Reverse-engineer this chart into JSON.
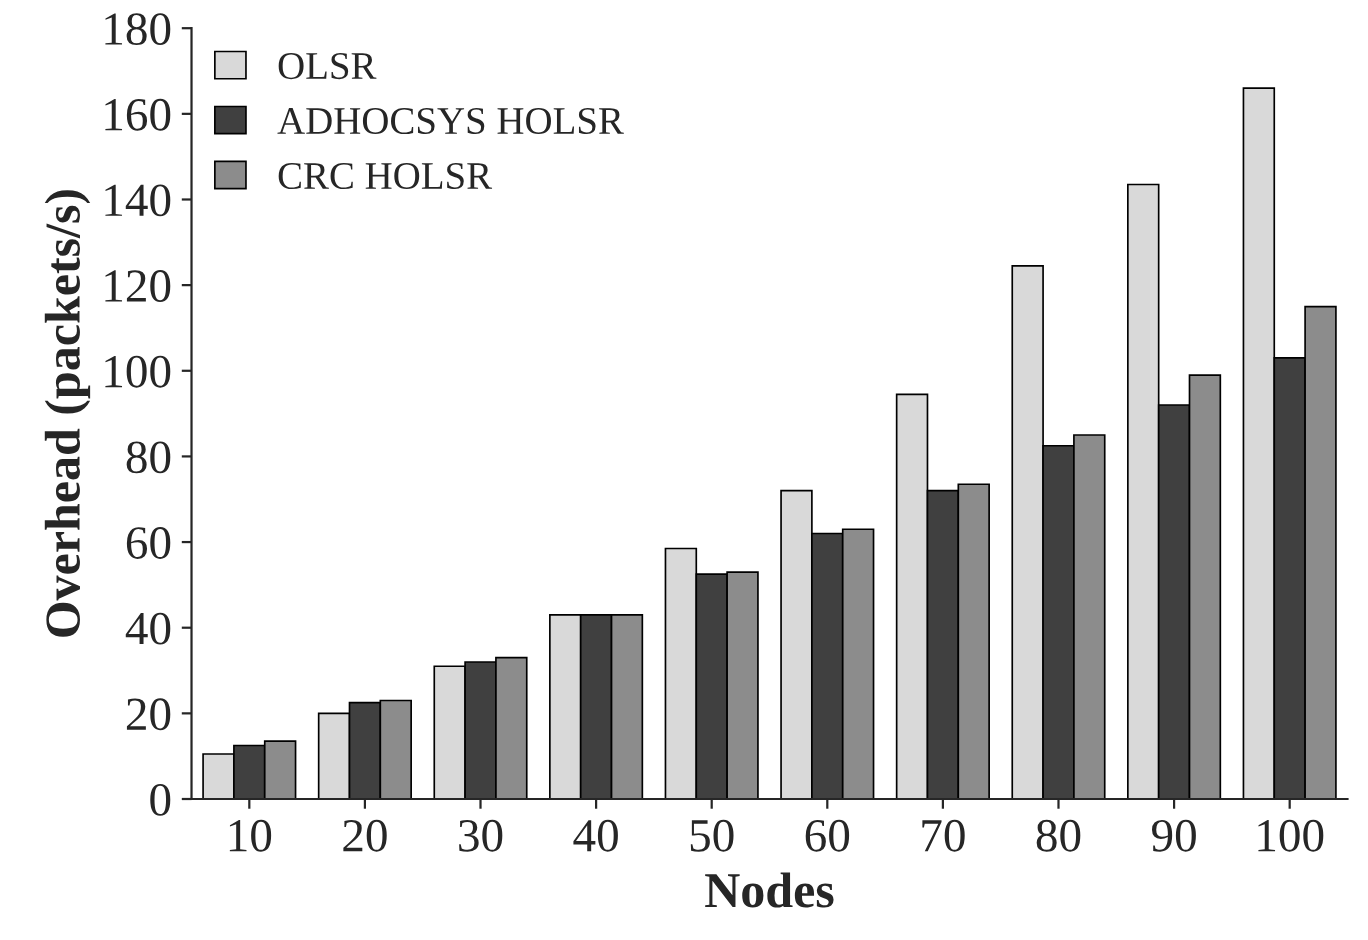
{
  "chart_data": {
    "type": "bar",
    "xlabel": "Nodes",
    "ylabel": "Overhead (packets/s)",
    "categories": [
      "10",
      "20",
      "30",
      "40",
      "50",
      "60",
      "70",
      "80",
      "90",
      "100"
    ],
    "series": [
      {
        "name": "OLSR",
        "color": "#d9d9d9",
        "values": [
          10.5,
          20,
          31,
          43,
          58.5,
          72,
          94.5,
          124.5,
          143.5,
          166
        ]
      },
      {
        "name": "ADHOCSYS HOLSR",
        "color": "#404040",
        "values": [
          12.5,
          22.5,
          32,
          43,
          52.5,
          62,
          72,
          82.5,
          92,
          103
        ]
      },
      {
        "name": "CRC HOLSR",
        "color": "#8c8c8c",
        "values": [
          13.5,
          23,
          33,
          43,
          53,
          63,
          73.5,
          85,
          99,
          115
        ]
      }
    ],
    "ylim": [
      0,
      180
    ],
    "yticks": [
      0,
      20,
      40,
      60,
      80,
      100,
      120,
      140,
      160,
      180
    ],
    "grid": false,
    "legend": "top left"
  }
}
